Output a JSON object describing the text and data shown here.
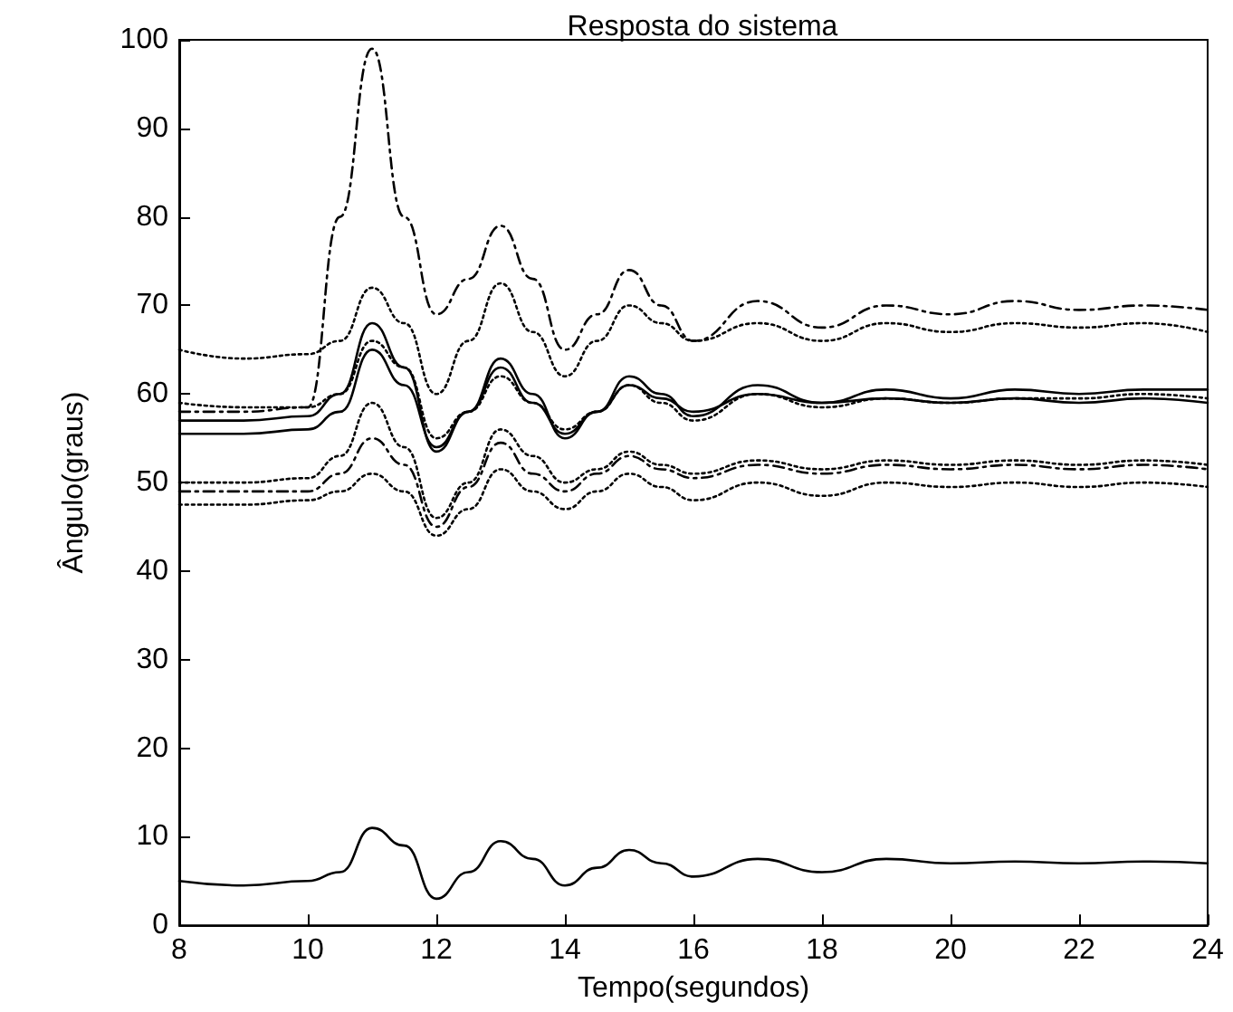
{
  "chart_data": {
    "type": "line",
    "title": "Resposta do sistema",
    "xlabel": "Tempo(segundos)",
    "ylabel": "Ângulo(graus)",
    "x": [
      8,
      9,
      10,
      10.5,
      11,
      11.5,
      12,
      12.5,
      13,
      13.5,
      14,
      14.5,
      15,
      15.5,
      16,
      17,
      18,
      19,
      20,
      21,
      22,
      23,
      24
    ],
    "xlim": [
      8,
      24
    ],
    "xticks": [
      8,
      10,
      12,
      14,
      16,
      18,
      20,
      22,
      24
    ],
    "ylim": [
      0,
      100
    ],
    "yticks": [
      0,
      10,
      20,
      30,
      40,
      50,
      60,
      70,
      80,
      90,
      100
    ],
    "grid": false,
    "marker": "none",
    "series": [
      {
        "color": "#000000",
        "line_style": "dashed",
        "values": [
          58,
          58,
          58.5,
          80,
          99,
          80,
          69,
          73,
          79,
          73,
          65,
          69,
          74,
          70,
          66,
          70.5,
          67.5,
          70,
          69,
          70.5,
          69.5,
          70,
          69.5
        ]
      },
      {
        "color": "#000000",
        "line_style": "dotted",
        "values": [
          65,
          64,
          64.5,
          66,
          72,
          68,
          60,
          66,
          72.5,
          67,
          62,
          66,
          70,
          68,
          66,
          68,
          66,
          68,
          67,
          68,
          67.5,
          68,
          67
        ]
      },
      {
        "color": "#000000",
        "line_style": "solid",
        "values": [
          57,
          57,
          57.5,
          60,
          68,
          63,
          53.5,
          58,
          64,
          60,
          55,
          58,
          62,
          60,
          57.5,
          61,
          59,
          60.5,
          59.5,
          60.5,
          60,
          60.5,
          60.5
        ]
      },
      {
        "color": "#000000",
        "line_style": "solid",
        "values": [
          55.5,
          55.5,
          56,
          58,
          65,
          61,
          54,
          58,
          63,
          59,
          55.5,
          58,
          61,
          59.5,
          58,
          60,
          59,
          59.5,
          59,
          59.5,
          59,
          59.5,
          59
        ]
      },
      {
        "color": "#000000",
        "line_style": "dotted",
        "values": [
          59,
          58.5,
          58.5,
          60,
          66,
          63,
          55,
          58,
          62,
          59,
          56,
          58,
          61,
          59,
          57,
          60,
          58.5,
          59.5,
          59,
          59.5,
          59.5,
          60,
          59.5
        ]
      },
      {
        "color": "#000000",
        "line_style": "dotted",
        "values": [
          50,
          50,
          50.5,
          53,
          59,
          54,
          46,
          50,
          56,
          53,
          50,
          51.5,
          53.5,
          52,
          51,
          52.5,
          51.5,
          52.5,
          52,
          52.5,
          52,
          52.5,
          52
        ]
      },
      {
        "color": "#000000",
        "line_style": "dashed",
        "values": [
          49,
          49,
          49,
          51,
          55,
          52,
          45,
          49.5,
          54.5,
          51,
          49,
          51,
          53,
          51.5,
          50.5,
          52,
          51,
          52,
          51.5,
          52,
          51.5,
          52,
          51.5
        ]
      },
      {
        "color": "#000000",
        "line_style": "dotted",
        "values": [
          47.5,
          47.5,
          48,
          49,
          51,
          49,
          44,
          47,
          51.5,
          49,
          47,
          49,
          51,
          49.5,
          48,
          50,
          48.5,
          50,
          49.5,
          50,
          49.5,
          50,
          49.5
        ]
      },
      {
        "color": "#000000",
        "line_style": "solid",
        "values": [
          5,
          4.5,
          5,
          6,
          11,
          9,
          3,
          6,
          9.5,
          7.5,
          4.5,
          6.5,
          8.5,
          7,
          5.5,
          7.5,
          6,
          7.5,
          7,
          7.2,
          7,
          7.2,
          7
        ]
      }
    ]
  }
}
